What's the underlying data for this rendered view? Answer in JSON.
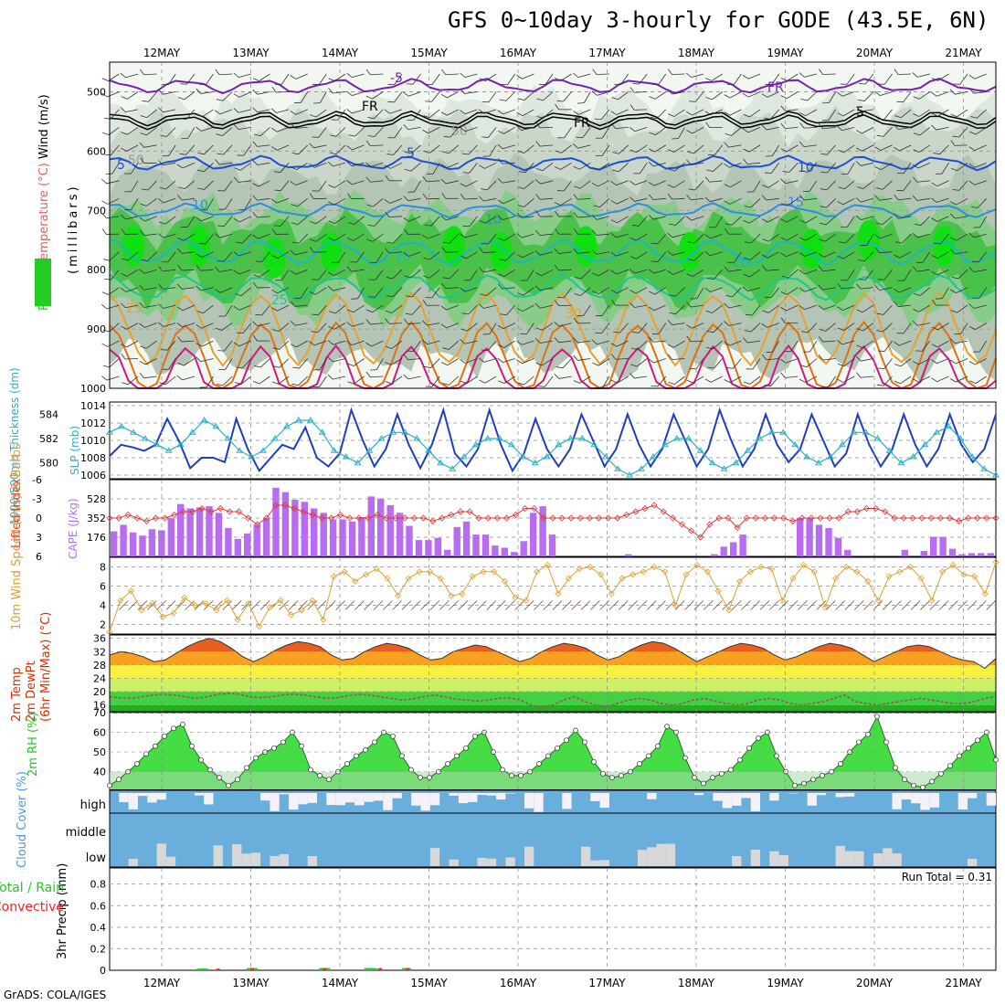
{
  "title": "GFS 0~10day 3-hourly for GODE (43.5E, 6N)",
  "credit": "GrADS: COLA/IGES",
  "chart_data": {
    "type": "meteogram",
    "date_labels": [
      "12MAY",
      "13MAY",
      "14MAY",
      "15MAY",
      "16MAY",
      "17MAY",
      "18MAY",
      "19MAY",
      "20MAY",
      "21MAY"
    ],
    "panels": [
      {
        "id": "upper_air",
        "ylabel_parts": [
          "RH (%)",
          "Temperature (°C)",
          "Wind (m/s)"
        ],
        "ylabel_units": "(millibars)",
        "yticks": [
          "500",
          "600",
          "700",
          "800",
          "900",
          "1000"
        ],
        "ylim": [
          1000,
          450
        ],
        "contour_labels": [
          "5",
          "-5",
          "FR",
          "FR",
          "FR",
          "5",
          "5",
          "10",
          "10",
          "10",
          "15",
          "15",
          "20",
          "25",
          "25",
          "30",
          "50",
          "50"
        ],
        "isotherms": [
          {
            "name": "-5",
            "color": "#7a1fb8",
            "level_mb": 490
          },
          {
            "name": "FR",
            "color": "#000000",
            "level_mb": 545
          },
          {
            "name": "5",
            "color": "#1f4fd6",
            "level_mb": 620
          },
          {
            "name": "10",
            "color": "#2a8fe0",
            "level_mb": 700
          },
          {
            "name": "15",
            "color": "#1cb4c8",
            "level_mb": 770
          },
          {
            "name": "20",
            "color": "#20c490",
            "level_mb": 830
          },
          {
            "name": "25",
            "color": "#e8a030",
            "level_mb": 900
          },
          {
            "name": "30",
            "color": "#e07010",
            "level_mb": 950
          },
          {
            "name": "35",
            "color": "#d01880",
            "level_mb": 990
          }
        ]
      },
      {
        "id": "thickness_slp",
        "ylabel_left": "1000-500mb Thickness (dm)",
        "ylabel_right": "SLP (mb)",
        "yticks_left": [
          "584",
          "582",
          "580"
        ],
        "yticks_right": [
          "1014",
          "1012",
          "1010",
          "1008",
          "1006"
        ],
        "series": [
          {
            "name": "SLP (mb)",
            "color": "#1f3fbf",
            "values": [
              1008.2,
              1009.5,
              1009.2,
              1008.8,
              1009.5,
              1012.5,
              1010,
              1006.8,
              1008,
              1008,
              1007.5,
              1012.5,
              1009,
              1006.5,
              1008,
              1009.5,
              1009,
              1011.5,
              1008,
              1007,
              1008.5,
              1013.5,
              1010,
              1007,
              1009,
              1013,
              1009.5,
              1006.8,
              1009.5,
              1013.5,
              1008.5,
              1007,
              1009,
              1013.5,
              1009.5,
              1006.5,
              1008.5,
              1012.5,
              1009,
              1007,
              1009,
              1013,
              1010,
              1007,
              1009,
              1013,
              1009.5,
              1007,
              1009,
              1013,
              1010,
              1007,
              1009,
              1013.5,
              1010,
              1007,
              1009,
              1013,
              1009.5,
              1007.5,
              1009,
              1013,
              1010,
              1007,
              1008.5,
              1013,
              1009.5,
              1007,
              1009,
              1013,
              1009.5,
              1007,
              1009,
              1013,
              1009.5,
              1007.5,
              1009,
              1013
            ]
          },
          {
            "name": "1000-500mb Thickness (dm)",
            "color": "#2ab0c8",
            "values": [
              582.5,
              583,
              582.5,
              582,
              581.5,
              581,
              581.5,
              582.5,
              583.5,
              583,
              582,
              581,
              580.5,
              581,
              582,
              583,
              583.5,
              583.5,
              582.5,
              581,
              580.5,
              580,
              581,
              582,
              582.5,
              582.5,
              582,
              581,
              580,
              579.5,
              580.5,
              581.5,
              582,
              582,
              581.5,
              580.5,
              580,
              580.5,
              581.5,
              582,
              582,
              581.5,
              580.5,
              579.5,
              579,
              579.5,
              580.5,
              581.5,
              582,
              582,
              581,
              580,
              579.5,
              580,
              581,
              582,
              582.5,
              582.5,
              581.5,
              580.5,
              580,
              580.5,
              581.5,
              582.5,
              582.5,
              582,
              581,
              580,
              580.5,
              581.5,
              582.5,
              583,
              582,
              580.5,
              579.5,
              579
            ]
          }
        ]
      },
      {
        "id": "cape_li",
        "ylabel_left": "Lifted Index",
        "ylabel_right": "CAPE (J/kg)",
        "yticks_left": [
          "-6",
          "-3",
          "0",
          "3",
          "6"
        ],
        "yticks_right": [
          "528",
          "352",
          "176"
        ],
        "series": [
          {
            "name": "CAPE (J/kg)",
            "color": "#b86cf0",
            "type": "bar",
            "values": [
              230,
              290,
              220,
              190,
              250,
              240,
              350,
              480,
              440,
              450,
              460,
              400,
              260,
              160,
              210,
              290,
              350,
              630,
              590,
              520,
              500,
              440,
              400,
              340,
              340,
              320,
              360,
              550,
              530,
              470,
              400,
              280,
              150,
              150,
              170,
              60,
              270,
              320,
              200,
              200,
              100,
              80,
              40,
              140,
              400,
              460,
              200,
              0,
              0,
              0,
              0,
              0,
              0,
              0,
              20,
              0,
              0,
              0,
              0,
              0,
              0,
              0,
              0,
              20,
              90,
              130,
              200,
              0,
              0,
              0,
              0,
              0,
              350,
              350,
              290,
              260,
              170,
              60,
              0,
              0,
              0,
              0,
              0,
              60,
              0,
              50,
              180,
              180,
              70,
              20,
              30,
              30,
              30
            ]
          },
          {
            "name": "Lifted Index",
            "color": "#e03838",
            "type": "line",
            "values": [
              0,
              0,
              -0.5,
              0,
              0.5,
              0,
              0,
              -0.5,
              -1,
              -1,
              -1.5,
              -1,
              -1.5,
              -1,
              -1,
              0,
              1,
              0,
              -2,
              -2,
              -1.5,
              -1,
              -0.5,
              0,
              0,
              -0.5,
              0,
              0,
              0,
              -0.5,
              0,
              0,
              0,
              0,
              0,
              0.5,
              0,
              -0.5,
              -1,
              -1,
              0,
              0,
              0,
              0,
              -0.5,
              -1.5,
              -1.5,
              0,
              0,
              0,
              0,
              0,
              0,
              0,
              0,
              0,
              -0.5,
              -1,
              -1.5,
              -2,
              -1,
              0,
              1,
              2,
              3,
              1,
              0,
              0,
              1.5,
              0,
              0,
              0,
              0,
              0,
              0.5,
              0,
              0,
              0,
              0,
              0,
              -1,
              -1,
              -1.5,
              -1.5,
              -1,
              0,
              0,
              0,
              0,
              0,
              0,
              0,
              0.5,
              0,
              0,
              0,
              0
            ]
          }
        ]
      },
      {
        "id": "wind10m",
        "ylabel": "10m Wind Speed (m/s) & Barbs",
        "yticks": [
          "8",
          "6",
          "4",
          "2"
        ],
        "ylim": [
          1,
          9
        ],
        "series": [
          {
            "name": "10m Wind Speed (m/s)",
            "color": "#e0a030",
            "values": [
              1.2,
              4.5,
              5.5,
              3.5,
              4.2,
              2.8,
              3.2,
              4.8,
              4,
              4.2,
              3.5,
              4.5,
              2.5,
              4.2,
              1.8,
              3.8,
              4.5,
              3,
              3.5,
              4.5,
              2.5,
              7,
              7.5,
              6.5,
              7.2,
              7.8,
              6.8,
              5,
              6.8,
              7.5,
              7.5,
              6.8,
              5,
              5.2,
              7,
              7.5,
              7.5,
              6.5,
              4.8,
              4.5,
              7.5,
              8.2,
              5.2,
              6.8,
              7.8,
              8,
              7.2,
              5.2,
              6.8,
              7.2,
              7.5,
              8,
              7.5,
              4,
              7.2,
              8.2,
              7.5,
              5.5,
              3.5,
              6.5,
              7.5,
              8,
              7.8,
              4.5,
              6.8,
              8.2,
              7.5,
              3.8,
              6.8,
              8,
              7.5,
              6.5,
              4.5,
              7,
              7.5,
              8,
              6.8,
              4.5,
              7.5,
              8.2,
              7.2,
              7,
              5.2,
              8.5
            ]
          }
        ]
      },
      {
        "id": "temp2m",
        "ylabel_parts": [
          "2m Temp",
          "2m DewPt",
          "(6hr Min/Max) (°C)"
        ],
        "yticks": [
          "36",
          "32",
          "28",
          "24",
          "20",
          "16"
        ],
        "ylim": [
          14,
          37
        ],
        "series": [
          {
            "name": "2m Temp (°C)",
            "color": "#d83000",
            "values": [
              31,
              32,
              31.5,
              30.5,
              29,
              29.5,
              31.5,
              33.5,
              35,
              36,
              35,
              33,
              30.5,
              29,
              30.5,
              32.5,
              34,
              35,
              34.5,
              33.5,
              31,
              29.5,
              30,
              32,
              33.5,
              34.5,
              34,
              33,
              31,
              29.5,
              30,
              32,
              33,
              34,
              33.5,
              32,
              30.5,
              29,
              30,
              32,
              33.5,
              34.5,
              34,
              33,
              31,
              29.5,
              30.5,
              32.5,
              34,
              35,
              34.5,
              33,
              31,
              29,
              30.5,
              32,
              33.5,
              34.5,
              34,
              33,
              31,
              29.5,
              30.5,
              32,
              33.5,
              34.5,
              34,
              33,
              31,
              29,
              30.5,
              32,
              33.5,
              34,
              33.5,
              32,
              30.5,
              29.5,
              29,
              27,
              30
            ]
          },
          {
            "name": "2m DewPt (°C)",
            "color": "#a05050",
            "values": [
              18.5,
              18.2,
              18,
              18.5,
              19,
              19.2,
              19,
              18.5,
              18,
              18.5,
              19.2,
              19.5,
              19.2,
              18.5,
              18.2,
              18.5,
              19,
              19.2,
              19,
              18.5,
              18,
              18.2,
              18.8,
              19.2,
              19,
              18.5,
              18,
              17.5,
              17.8,
              18.5,
              19,
              18.5,
              17.8,
              17.5,
              17.2,
              17.5,
              18,
              18.2,
              17.5,
              16,
              15,
              16,
              17.5,
              18.5,
              17,
              16,
              15.5,
              16.5,
              17.5,
              18,
              17.5,
              16.5,
              16,
              16.5,
              17.5,
              18,
              17.2,
              16.5,
              16,
              16.5,
              17.5,
              18,
              17.5,
              16.5,
              16,
              16.5,
              17,
              18,
              19,
              17,
              16.5,
              16,
              16.5,
              17,
              17.5,
              18,
              17.5,
              17,
              16.5,
              16.5,
              17,
              18,
              18.5
            ]
          }
        ]
      },
      {
        "id": "rh2m",
        "ylabel": "2m RH (%)",
        "yticks": [
          "70",
          "60",
          "50",
          "40"
        ],
        "ylim": [
          31,
          70
        ],
        "series": [
          {
            "name": "2m RH (%)",
            "color": "#22cc33",
            "values": [
              33,
              36,
              40,
              44,
              49,
              53,
              58,
              62,
              64,
              53,
              46,
              41,
              37,
              33,
              36,
              42,
              47,
              50,
              52,
              55,
              60,
              53,
              41,
              38,
              36,
              40,
              44,
              48,
              51,
              55,
              60,
              58,
              48,
              41,
              37,
              37,
              40,
              44,
              48,
              52,
              58,
              60,
              50,
              41,
              38,
              38,
              40,
              44,
              48,
              52,
              56,
              61,
              55,
              45,
              39,
              37,
              38,
              40,
              44,
              48,
              53,
              63,
              60,
              47,
              37,
              34,
              37,
              39,
              41,
              46,
              52,
              57,
              60,
              48,
              40,
              33,
              34,
              36,
              38,
              40,
              44,
              50,
              55,
              59,
              68,
              55,
              42,
              36,
              33,
              32,
              35,
              39,
              43,
              48,
              52,
              56,
              60,
              46
            ]
          }
        ]
      },
      {
        "id": "cloud",
        "ylabel": "Cloud Cover (%)",
        "row_labels": [
          "high",
          "middle",
          "low"
        ]
      },
      {
        "id": "precip",
        "ylabel": "3hr Precip (mm)",
        "side_labels": [
          "Total / Rain",
          "Convective"
        ],
        "yticks": [
          "0",
          "0.2",
          "0.4",
          "0.6",
          "0.8"
        ],
        "ylim": [
          0,
          0.95
        ],
        "annotation": "Run Total = 0.31",
        "series": [
          {
            "name": "Total / Rain",
            "color": "#22cc22",
            "type": "bar",
            "times": [
              9.7,
              10.0,
              15.0,
              15.2,
              22.7,
              22.9,
              27.5,
              27.8,
              28.3,
              31.5
            ],
            "values": [
              0.015,
              0.015,
              0.02,
              0.02,
              0.02,
              0.02,
              0.02,
              0.02,
              0.015,
              0.02
            ]
          },
          {
            "name": "Convective",
            "color": "#ff2020",
            "type": "bar",
            "times": [
              11.5,
              15.1,
              22.8,
              28.7,
              31.6
            ],
            "values": [
              0.015,
              0.02,
              0.02,
              0.02,
              0.02
            ]
          }
        ]
      }
    ]
  }
}
